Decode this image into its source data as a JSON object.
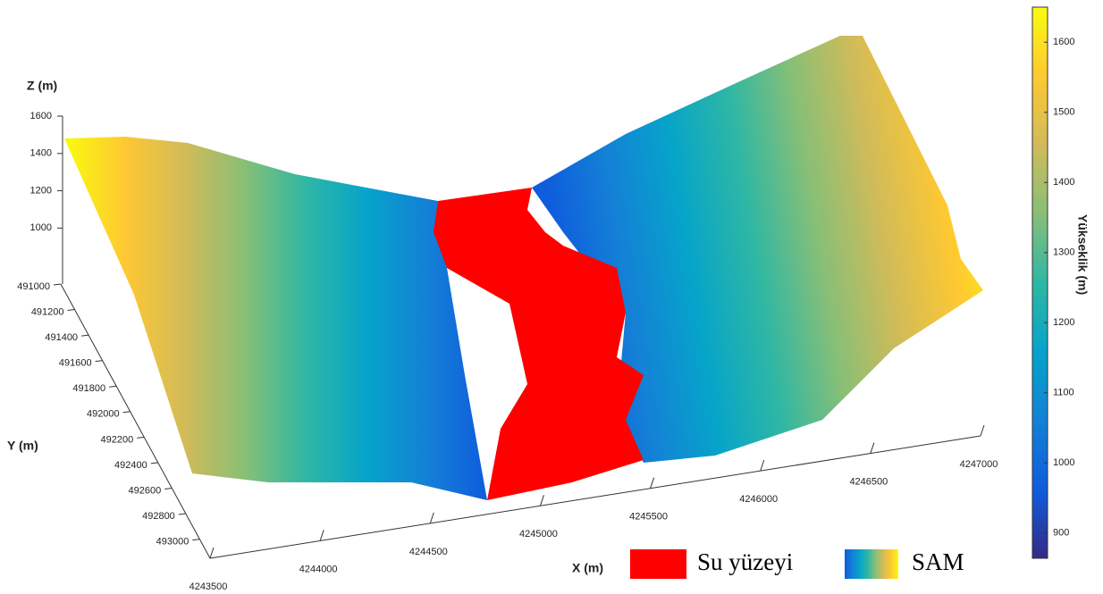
{
  "chart_data": {
    "type": "surface",
    "x_label": "X (m)",
    "y_label": "Y (m)",
    "z_label": "Z (m)",
    "colorbar_label": "Yükseklik (m)",
    "xlim": [
      4243500,
      4247000
    ],
    "xticks": [
      4243500,
      4244000,
      4244500,
      4245000,
      4245500,
      4246000,
      4246500,
      4247000
    ],
    "ylim": [
      491000,
      493150
    ],
    "yticks": [
      491000,
      491200,
      491400,
      491600,
      491800,
      492000,
      492200,
      492400,
      492600,
      492800,
      493000
    ],
    "zlim": [
      700,
      1600
    ],
    "zticks": [
      1000,
      1200,
      1400,
      1600
    ],
    "clim": [
      864,
      1650
    ],
    "cticks": [
      900,
      1000,
      1100,
      1200,
      1300,
      1400,
      1500,
      1600
    ],
    "colormap": [
      "#352a87",
      "#0f5cdd",
      "#1481d6",
      "#06a4ca",
      "#2eb7a4",
      "#87bf77",
      "#d1bb59",
      "#fec832",
      "#f9fb0e"
    ],
    "series": [
      {
        "name": "Su yüzeyi",
        "color": "#ff0000"
      },
      {
        "name": "SAM",
        "color": "colormap"
      }
    ]
  }
}
